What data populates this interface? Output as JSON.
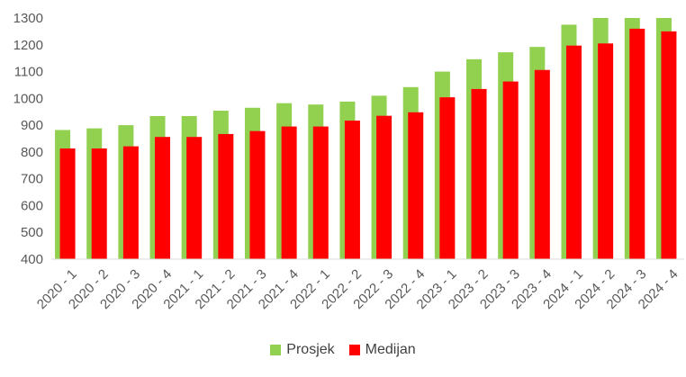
{
  "chart_data": {
    "type": "bar",
    "categories": [
      "2020 - 1",
      "2020 - 2",
      "2020 - 3",
      "2020 - 4",
      "2021 - 1",
      "2021 - 2",
      "2021 - 3",
      "2021 - 4",
      "2022 - 1",
      "2022 - 2",
      "2022 - 3",
      "2022 - 4",
      "2023 - 1",
      "2023 - 2",
      "2023 - 3",
      "2023 - 4",
      "2024 - 1",
      "2024 - 2",
      "2024 - 3",
      "2024 - 4"
    ],
    "series": [
      {
        "name": "Prosjek",
        "color": "#92D050",
        "values": [
          882,
          888,
          900,
          934,
          934,
          954,
          965,
          982,
          977,
          988,
          1010,
          1042,
          1100,
          1146,
          1172,
          1192,
          1275,
          1303,
          1303,
          1303
        ]
      },
      {
        "name": "Medijan",
        "color": "#FF0000",
        "values": [
          813,
          813,
          821,
          856,
          856,
          867,
          878,
          895,
          895,
          917,
          935,
          948,
          1004,
          1035,
          1063,
          1106,
          1197,
          1205,
          1260,
          1250
        ]
      }
    ],
    "title": "",
    "xlabel": "",
    "ylabel": "",
    "ylim": [
      400,
      1300
    ],
    "yticks": [
      400,
      500,
      600,
      700,
      800,
      900,
      1000,
      1100,
      1200,
      1300
    ],
    "grid": false,
    "legend_position": "bottom"
  }
}
